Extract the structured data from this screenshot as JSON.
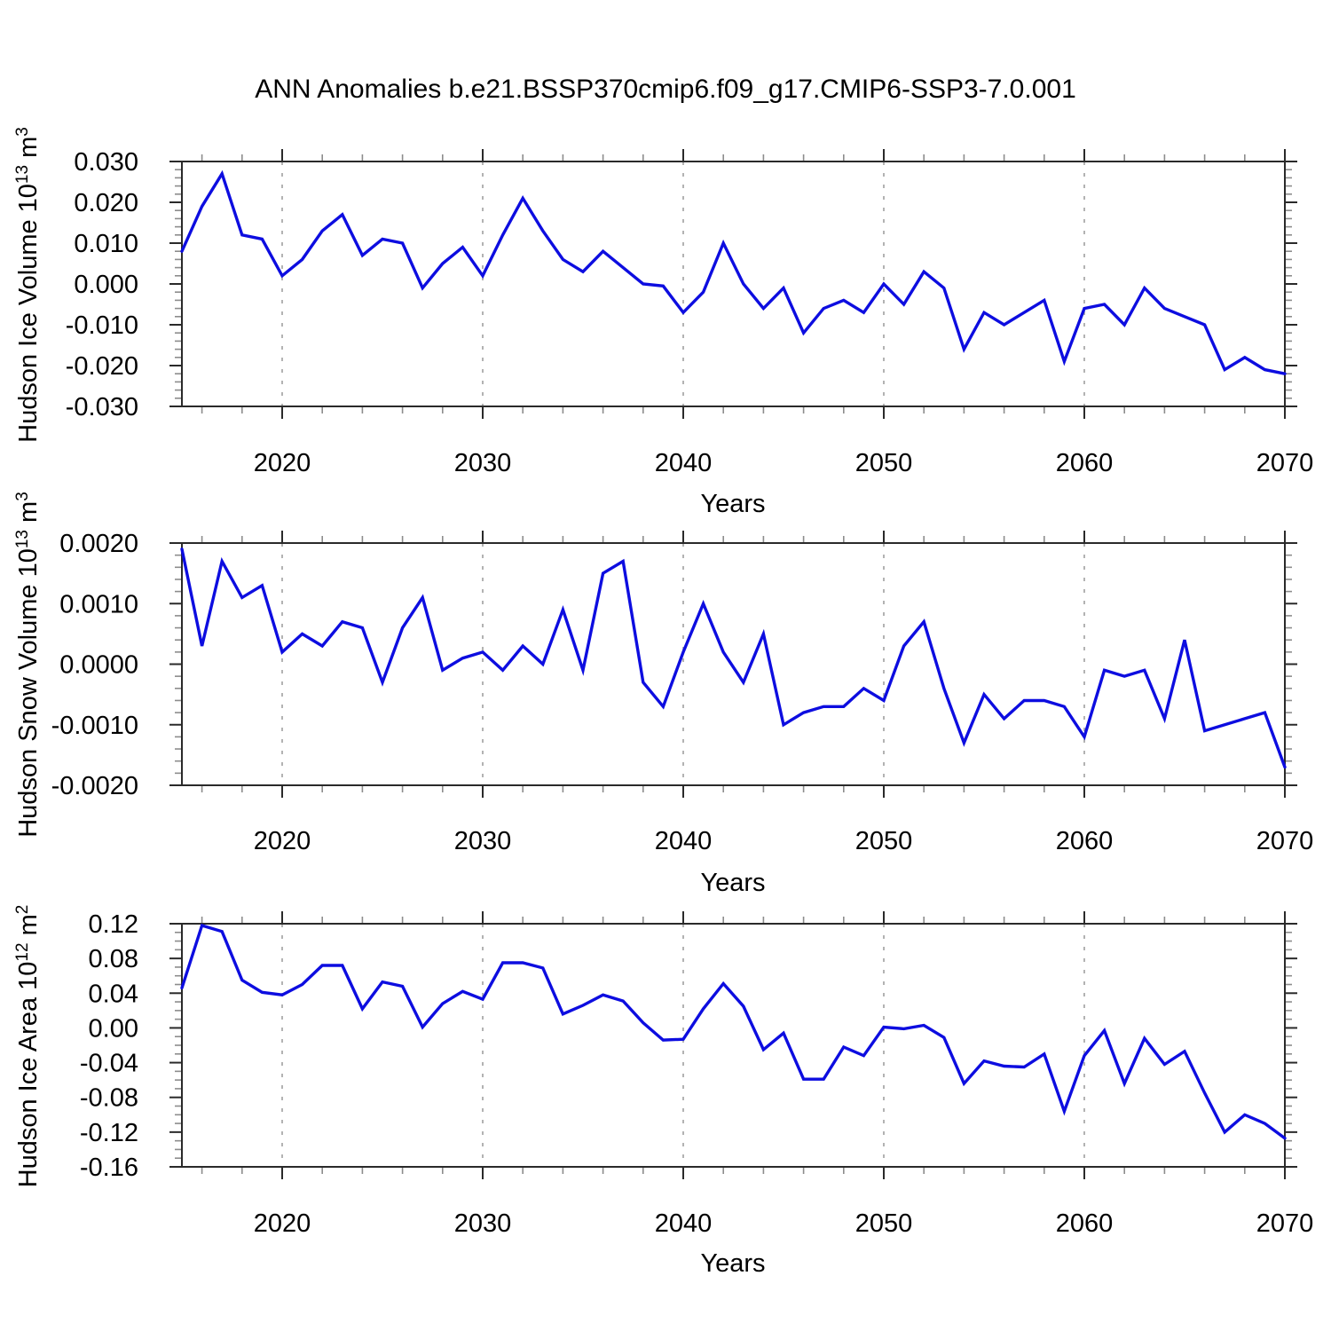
{
  "title": "ANN Anomalies b.e21.BSSP370cmip6.f09_g17.CMIP6-SSP3-7.0.001",
  "style": {
    "line_color": "#0d0de0",
    "axis_color": "#2a2a2a",
    "minor_tick_color": "#8c8c8c",
    "grid_color": "#a0a0a0",
    "text_color": "#000000"
  },
  "chart_data": [
    {
      "type": "line",
      "title": "ANN Anomalies b.e21.BSSP370cmip6.f09_g17.CMIP6-SSP3-7.0.001",
      "ylabel": "Hudson Ice Volume 10¹³ m³",
      "ylabel_parts": {
        "prefix": "Hudson Ice Volume 10",
        "sup1": "13",
        "mid": " m",
        "sup2": "3"
      },
      "xlabel": "Years",
      "x_start": 2015,
      "x_end": 2070,
      "ylim": [
        -0.03,
        0.03
      ],
      "ytick_step": 0.01,
      "yminor_step": 0.002,
      "ytick_decimals": 3,
      "xticks": [
        2020,
        2030,
        2040,
        2050,
        2060,
        2070
      ],
      "xminor_step": 2,
      "gridlines": [
        2020,
        2030,
        2040,
        2050,
        2060
      ],
      "grid": "vertical-dashed",
      "legend": "none",
      "x": [
        2015,
        2016,
        2017,
        2018,
        2019,
        2020,
        2021,
        2022,
        2023,
        2024,
        2025,
        2026,
        2027,
        2028,
        2029,
        2030,
        2031,
        2032,
        2033,
        2034,
        2035,
        2036,
        2037,
        2038,
        2039,
        2040,
        2041,
        2042,
        2043,
        2044,
        2045,
        2046,
        2047,
        2048,
        2049,
        2050,
        2051,
        2052,
        2053,
        2054,
        2055,
        2056,
        2057,
        2058,
        2059,
        2060,
        2061,
        2062,
        2063,
        2064,
        2065,
        2066,
        2067,
        2068,
        2069,
        2070
      ],
      "values": [
        0.008,
        0.019,
        0.027,
        0.012,
        0.011,
        0.002,
        0.006,
        0.013,
        0.017,
        0.007,
        0.011,
        0.01,
        -0.001,
        0.005,
        0.009,
        0.002,
        0.012,
        0.021,
        0.013,
        0.006,
        0.003,
        0.008,
        0.004,
        0.0,
        -0.0005,
        -0.007,
        -0.002,
        0.01,
        0.0,
        -0.006,
        -0.001,
        -0.012,
        -0.006,
        -0.004,
        -0.007,
        0.0,
        -0.005,
        0.003,
        -0.001,
        -0.016,
        -0.007,
        -0.01,
        -0.007,
        -0.004,
        -0.019,
        -0.006,
        -0.005,
        -0.01,
        -0.001,
        -0.006,
        -0.008,
        -0.01,
        -0.021,
        -0.018,
        -0.021,
        -0.022
      ]
    },
    {
      "type": "line",
      "ylabel": "Hudson Snow Volume 10¹³ m³",
      "ylabel_parts": {
        "prefix": "Hudson Snow Volume 10",
        "sup1": "13",
        "mid": " m",
        "sup2": "3"
      },
      "xlabel": "Years",
      "x_start": 2015,
      "x_end": 2070,
      "ylim": [
        -0.002,
        0.002
      ],
      "ytick_step": 0.001,
      "yminor_step": 0.0002,
      "ytick_decimals": 4,
      "xticks": [
        2020,
        2030,
        2040,
        2050,
        2060,
        2070
      ],
      "xminor_step": 2,
      "gridlines": [
        2020,
        2030,
        2040,
        2050,
        2060
      ],
      "grid": "vertical-dashed",
      "legend": "none",
      "x": [
        2015,
        2016,
        2017,
        2018,
        2019,
        2020,
        2021,
        2022,
        2023,
        2024,
        2025,
        2026,
        2027,
        2028,
        2029,
        2030,
        2031,
        2032,
        2033,
        2034,
        2035,
        2036,
        2037,
        2038,
        2039,
        2040,
        2041,
        2042,
        2043,
        2044,
        2045,
        2046,
        2047,
        2048,
        2049,
        2050,
        2051,
        2052,
        2053,
        2054,
        2055,
        2056,
        2057,
        2058,
        2059,
        2060,
        2061,
        2062,
        2063,
        2064,
        2065,
        2066,
        2067,
        2068,
        2069,
        2070
      ],
      "values": [
        0.0019,
        0.0003,
        0.0017,
        0.0011,
        0.0013,
        0.0002,
        0.0005,
        0.0003,
        0.0007,
        0.0006,
        -0.0003,
        0.0006,
        0.0011,
        -0.0001,
        0.0001,
        0.0002,
        -0.0001,
        0.0003,
        0.0,
        0.0009,
        -0.0001,
        0.0015,
        0.0017,
        -0.0003,
        -0.0007,
        0.0002,
        0.001,
        0.0002,
        -0.0003,
        0.0005,
        -0.001,
        -0.0008,
        -0.0007,
        -0.0007,
        -0.0004,
        -0.0006,
        0.0003,
        0.0007,
        -0.0004,
        -0.0013,
        -0.0005,
        -0.0009,
        -0.0006,
        -0.0006,
        -0.0007,
        -0.0012,
        -0.0001,
        -0.0002,
        -0.0001,
        -0.0009,
        0.0004,
        -0.0011,
        -0.001,
        -0.0009,
        -0.0008,
        -0.0017
      ]
    },
    {
      "type": "line",
      "ylabel": "Hudson Ice Area 10¹² m²",
      "ylabel_parts": {
        "prefix": "Hudson Ice Area 10",
        "sup1": "12",
        "mid": " m",
        "sup2": "2"
      },
      "xlabel": "Years",
      "x_start": 2015,
      "x_end": 2070,
      "ylim": [
        -0.16,
        0.12
      ],
      "ytick_step": 0.04,
      "yminor_step": 0.01,
      "ytick_decimals": 2,
      "xticks": [
        2020,
        2030,
        2040,
        2050,
        2060,
        2070
      ],
      "xminor_step": 2,
      "gridlines": [
        2020,
        2030,
        2040,
        2050,
        2060
      ],
      "grid": "vertical-dashed",
      "legend": "none",
      "x": [
        2015,
        2016,
        2017,
        2018,
        2019,
        2020,
        2021,
        2022,
        2023,
        2024,
        2025,
        2026,
        2027,
        2028,
        2029,
        2030,
        2031,
        2032,
        2033,
        2034,
        2035,
        2036,
        2037,
        2038,
        2039,
        2040,
        2041,
        2042,
        2043,
        2044,
        2045,
        2046,
        2047,
        2048,
        2049,
        2050,
        2051,
        2052,
        2053,
        2054,
        2055,
        2056,
        2057,
        2058,
        2059,
        2060,
        2061,
        2062,
        2063,
        2064,
        2065,
        2066,
        2067,
        2068,
        2069,
        2070
      ],
      "values": [
        0.046,
        0.118,
        0.111,
        0.055,
        0.041,
        0.038,
        0.05,
        0.072,
        0.072,
        0.022,
        0.053,
        0.048,
        0.001,
        0.028,
        0.042,
        0.033,
        0.075,
        0.075,
        0.069,
        0.016,
        0.026,
        0.038,
        0.031,
        0.006,
        -0.014,
        -0.013,
        0.022,
        0.051,
        0.025,
        -0.025,
        -0.006,
        -0.059,
        -0.059,
        -0.022,
        -0.032,
        0.001,
        -0.001,
        0.003,
        -0.011,
        -0.064,
        -0.038,
        -0.044,
        -0.045,
        -0.03,
        -0.096,
        -0.032,
        -0.003,
        -0.064,
        -0.012,
        -0.042,
        -0.027,
        -0.075,
        -0.12,
        -0.1,
        -0.11,
        -0.127
      ]
    }
  ]
}
